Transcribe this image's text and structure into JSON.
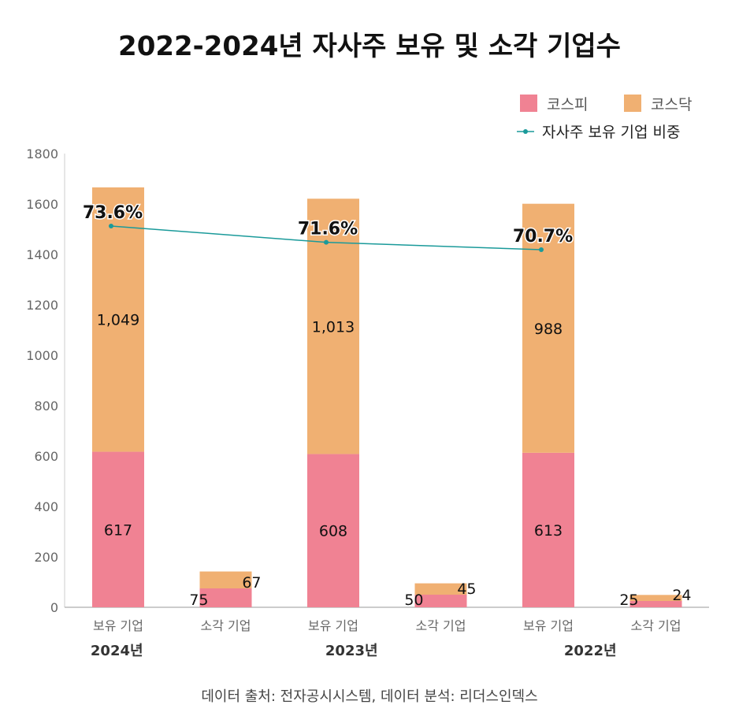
{
  "chart_data": {
    "type": "bar",
    "stacked": true,
    "title": "2022-2024년 자사주 보유 및 소각 기업수",
    "categories": [
      "보유 기업",
      "소각 기업",
      "보유 기업",
      "소각 기업",
      "보유 기업",
      "소각 기업"
    ],
    "groups": [
      "2024년",
      "2023년",
      "2022년"
    ],
    "series": [
      {
        "name": "코스피",
        "color": "#f08293",
        "values": [
          617,
          75,
          608,
          50,
          613,
          25
        ]
      },
      {
        "name": "코스닥",
        "color": "#f0b072",
        "values": [
          1049,
          67,
          1013,
          45,
          988,
          24
        ]
      }
    ],
    "data_labels": {
      "코스피": [
        "617",
        "75",
        "608",
        "50",
        "613",
        "25"
      ],
      "코스닥": [
        "1,049",
        "67",
        "1,013",
        "45",
        "988",
        "24"
      ]
    },
    "line_series": {
      "name": "자사주 보유 기업 비중",
      "color": "#1a9a9a",
      "categories": [
        "2024년",
        "2023년",
        "2022년"
      ],
      "values": [
        73.6,
        71.6,
        70.7
      ],
      "labels": [
        "73.6%",
        "71.6%",
        "70.7%"
      ]
    },
    "ylim": [
      0,
      1800
    ],
    "yticks": [
      "0",
      "200",
      "400",
      "600",
      "800",
      "1000",
      "1200",
      "1400",
      "1600",
      "1800"
    ],
    "grid": false,
    "legend": "top-right"
  },
  "footer": {
    "source": "데이터 출처: 전자공시시스템, 데이터 분석: 리더스인덱스"
  }
}
